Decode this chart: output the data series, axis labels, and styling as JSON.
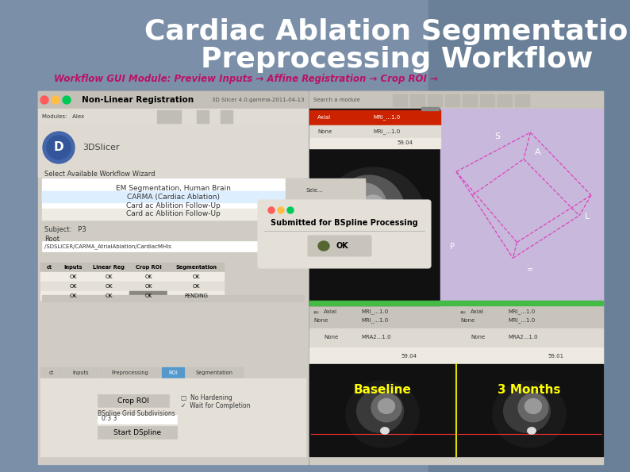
{
  "title_line1": "Cardiac Ablation Segmentation",
  "title_line2": "Preprocessing Workflow",
  "title_color": "#ffffff",
  "title_fontsize": 26,
  "subtitle": "Workflow GUI Module: Preview Inputs → Affine Registration → Crop ROI →",
  "subtitle_color": "#bb1166",
  "subtitle_fontsize": 8.5,
  "nonlinear_text": "Non-Linear Registration",
  "bg_top": "#7b90a8",
  "bg_bottom": "#6a7f98",
  "gui_bg": "#d6d2ca",
  "white": "#ffffff",
  "baseline_label": "Baseline",
  "months_label": "3 Months",
  "label_color": "#ffff00",
  "label_fontsize": 11,
  "violet_bg": "#c8b8dc",
  "pink_line": "#dd44bb",
  "green_bar": "#44bb44",
  "red_bar": "#cc2200"
}
